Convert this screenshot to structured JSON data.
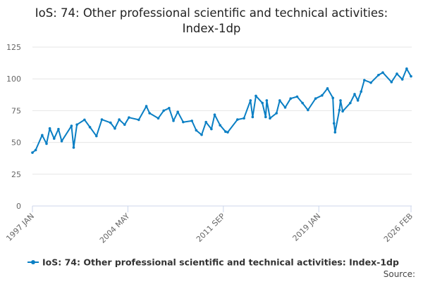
{
  "chart_data": {
    "type": "line",
    "title_line1": "IoS: 74: Other professional scientific and technical activities:",
    "title_line2": "Index-1dp",
    "xlabel": "",
    "ylabel": "",
    "ylim": [
      0,
      125
    ],
    "yticks": [
      "0",
      "25",
      "50",
      "75",
      "100",
      "125"
    ],
    "ytick_values": [
      0,
      25,
      50,
      75,
      100,
      125
    ],
    "xticks": [
      {
        "label": "1997 JAN",
        "date": "1997-01"
      },
      {
        "label": "2004 MAY",
        "date": "2004-05"
      },
      {
        "label": "2011 SEP",
        "date": "2011-09"
      },
      {
        "label": "2019 JAN",
        "date": "2019-01"
      },
      {
        "label": "2026 FEB",
        "date": "2026-02"
      }
    ],
    "xrange": [
      "1997-01",
      "2026-02"
    ],
    "grid": true,
    "legend_position": "bottom",
    "color": "#0a7fc4",
    "series": [
      {
        "name": "IoS: 74: Other professional scientific and technical activities: Index-1dp",
        "points": [
          [
            "1997-01",
            42
          ],
          [
            "1997-04",
            44
          ],
          [
            "1997-10",
            55.7
          ],
          [
            "1998-02",
            49
          ],
          [
            "1998-05",
            61
          ],
          [
            "1998-09",
            53
          ],
          [
            "1999-01",
            60.5
          ],
          [
            "1999-04",
            51
          ],
          [
            "2000-01",
            63
          ],
          [
            "2000-03",
            46
          ],
          [
            "2000-06",
            64
          ],
          [
            "2001-01",
            67.8
          ],
          [
            "2001-06",
            62
          ],
          [
            "2001-12",
            55
          ],
          [
            "2002-05",
            68
          ],
          [
            "2003-01",
            65.5
          ],
          [
            "2003-05",
            61
          ],
          [
            "2003-09",
            68
          ],
          [
            "2004-02",
            64
          ],
          [
            "2004-06",
            69.6
          ],
          [
            "2005-03",
            67.8
          ],
          [
            "2005-10",
            78.5
          ],
          [
            "2006-01",
            73
          ],
          [
            "2006-09",
            69
          ],
          [
            "2007-02",
            75
          ],
          [
            "2007-07",
            77
          ],
          [
            "2007-11",
            67
          ],
          [
            "2008-03",
            74
          ],
          [
            "2008-08",
            66
          ],
          [
            "2009-04",
            67
          ],
          [
            "2009-08",
            59.5
          ],
          [
            "2010-01",
            56
          ],
          [
            "2010-05",
            66
          ],
          [
            "2010-10",
            60.5
          ],
          [
            "2011-01",
            71.8
          ],
          [
            "2011-06",
            63.5
          ],
          [
            "2011-11",
            58.5
          ],
          [
            "2012-01",
            58
          ],
          [
            "2012-10",
            68
          ],
          [
            "2013-04",
            69
          ],
          [
            "2013-10",
            83
          ],
          [
            "2013-12",
            70
          ],
          [
            "2014-03",
            86.6
          ],
          [
            "2014-09",
            81
          ],
          [
            "2014-12",
            70
          ],
          [
            "2015-01",
            83
          ],
          [
            "2015-04",
            69
          ],
          [
            "2015-10",
            73
          ],
          [
            "2016-01",
            83
          ],
          [
            "2016-06",
            77.5
          ],
          [
            "2016-11",
            84.5
          ],
          [
            "2017-05",
            86
          ],
          [
            "2017-10",
            81
          ],
          [
            "2018-03",
            75.5
          ],
          [
            "2018-10",
            84.5
          ],
          [
            "2019-04",
            87
          ],
          [
            "2019-09",
            92.5
          ],
          [
            "2020-02",
            85
          ],
          [
            "2020-03",
            65
          ],
          [
            "2020-04",
            58
          ],
          [
            "2020-08",
            75.5
          ],
          [
            "2020-09",
            83
          ],
          [
            "2020-11",
            74.5
          ],
          [
            "2021-06",
            81
          ],
          [
            "2021-10",
            88
          ],
          [
            "2022-01",
            83
          ],
          [
            "2022-04",
            90
          ],
          [
            "2022-07",
            99
          ],
          [
            "2023-01",
            97
          ],
          [
            "2023-08",
            103
          ],
          [
            "2023-12",
            105
          ],
          [
            "2024-08",
            97.5
          ],
          [
            "2025-01",
            104
          ],
          [
            "2025-06",
            99.6
          ],
          [
            "2025-10",
            108
          ],
          [
            "2026-02",
            102
          ]
        ]
      }
    ],
    "source_label": "Source:"
  }
}
